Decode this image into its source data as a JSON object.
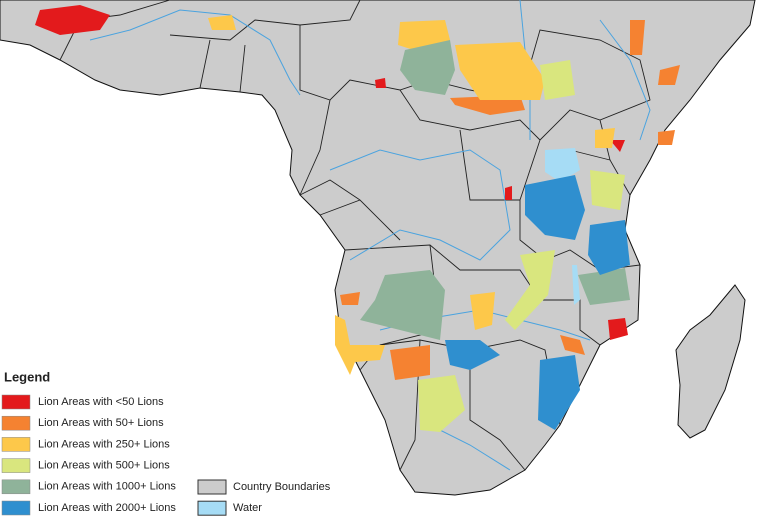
{
  "legend": {
    "title": "Legend",
    "items": [
      {
        "label": "Lion Areas with <50 Lions",
        "color": "#e31a1c"
      },
      {
        "label": "Lion Areas with 50+ Lions",
        "color": "#f58231"
      },
      {
        "label": "Lion Areas with 250+ Lions",
        "color": "#fdc84a"
      },
      {
        "label": "Lion Areas with 500+ Lions",
        "color": "#d9e67e"
      },
      {
        "label": "Lion Areas with 1000+ Lions",
        "color": "#8fb39a"
      },
      {
        "label": "Lion Areas with 2000+ Lions",
        "color": "#2f8fcf"
      }
    ],
    "extra_items": [
      {
        "label": "Country Boundaries",
        "color": "#cccccc"
      },
      {
        "label": "Water",
        "color": "#a6dcf5"
      }
    ]
  }
}
